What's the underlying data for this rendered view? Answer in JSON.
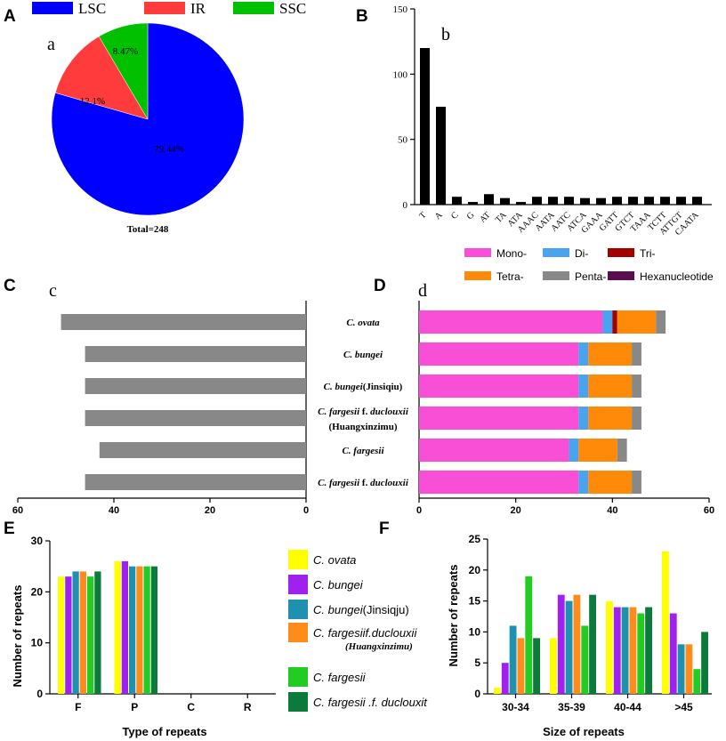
{
  "chart_data": [
    {
      "panel": "A",
      "sublabel": "a",
      "type": "pie",
      "labels": [
        "LSC",
        "IR",
        "SSC"
      ],
      "values": [
        79.44,
        12.1,
        8.47
      ],
      "value_labels": [
        "79.44%",
        "12.1%",
        "8.47%"
      ],
      "colors": [
        "#0000ff",
        "#ff3b3b",
        "#00c000"
      ],
      "total_label": "Total=248"
    },
    {
      "panel": "B",
      "sublabel": "b",
      "type": "bar",
      "categories": [
        "T",
        "A",
        "C",
        "G",
        "AT",
        "TA",
        "ATA",
        "AAAC",
        "AATA",
        "AATC",
        "ATCA",
        "GAAA",
        "GATT",
        "GTCT",
        "TAAA",
        "TCTT",
        "ATTGT",
        "CAATA"
      ],
      "values": [
        120,
        75,
        6,
        2,
        8,
        5,
        2,
        6,
        6,
        6,
        5,
        5,
        6,
        6,
        6,
        6,
        6,
        6
      ],
      "ylim": [
        0,
        150
      ],
      "yticks": [
        0,
        50,
        100,
        150
      ],
      "color": "#000000"
    },
    {
      "panel": "C",
      "sublabel": "c",
      "type": "bar",
      "orientation": "horizontal-reversed",
      "categories": [
        "C. ovata",
        "C. bungei",
        "C. bungei(Jinsiqiu)",
        "C. fargesii f. duclouxii (Huangxinzimu)",
        "C. fargesii",
        "C. fargesii f. duclouxii"
      ],
      "values": [
        51,
        46,
        46,
        46,
        43,
        46
      ],
      "xlim": [
        60,
        0
      ],
      "xticks": [
        60,
        40,
        20,
        0
      ],
      "color": "#888888"
    },
    {
      "panel": "D",
      "sublabel": "d",
      "type": "bar",
      "orientation": "horizontal-stacked",
      "categories": [
        "C. ovata",
        "C. bungei",
        "C. bungei(Jinsiqiu)",
        "C. fargesii f. duclouxii (Huangxinzimu)",
        "C. fargesii",
        "C. fargesii f. duclouxii"
      ],
      "series": [
        {
          "name": "Mono-",
          "color": "#f94fd6",
          "values": [
            38,
            33,
            33,
            33,
            31,
            33
          ]
        },
        {
          "name": "Di-",
          "color": "#4aa3ef",
          "values": [
            2,
            2,
            2,
            2,
            2,
            2
          ]
        },
        {
          "name": "Tri-",
          "color": "#a30000",
          "values": [
            1,
            0,
            0,
            0,
            0,
            0
          ]
        },
        {
          "name": "Tetra-",
          "color": "#ff8a0a",
          "values": [
            8,
            9,
            9,
            9,
            8,
            9
          ]
        },
        {
          "name": "Penta-",
          "color": "#888888",
          "values": [
            2,
            2,
            2,
            2,
            2,
            2
          ]
        },
        {
          "name": "Hexanucleotide",
          "color": "#5a0e4f",
          "values": [
            0,
            0,
            0,
            0,
            0,
            0
          ]
        }
      ],
      "xlim": [
        0,
        60
      ],
      "xticks": [
        0,
        20,
        40,
        60
      ]
    },
    {
      "panel": "E",
      "type": "bar",
      "categories": [
        "F",
        "P",
        "C",
        "R"
      ],
      "series": [
        {
          "name": "C. ovata",
          "color": "#ffff00",
          "values": [
            23,
            26,
            0,
            0
          ]
        },
        {
          "name": "C. bungei",
          "color": "#a020f0",
          "values": [
            23,
            26,
            0,
            0
          ]
        },
        {
          "name": "C. bungei(Jinsiqju)",
          "color": "#1e90b0",
          "values": [
            24,
            25,
            0,
            0
          ]
        },
        {
          "name": "C. fargesiif.duclouxii (Huangxinzimu)",
          "color": "#ff8c1a",
          "values": [
            24,
            25,
            0,
            0
          ]
        },
        {
          "name": "C. fargesii",
          "color": "#22cc22",
          "values": [
            23,
            25,
            0,
            0
          ]
        },
        {
          "name": "C. fargesii .f. duclouxit",
          "color": "#0b7a3b",
          "values": [
            24,
            25,
            0,
            0
          ]
        }
      ],
      "xlabel": "Type of repeats",
      "ylabel": "Number of repeats",
      "ylim": [
        0,
        30
      ],
      "yticks": [
        0,
        10,
        20,
        30
      ]
    },
    {
      "panel": "F",
      "type": "bar",
      "categories": [
        "30-34",
        "35-39",
        "40-44",
        ">45"
      ],
      "series": [
        {
          "name": "C. ovata",
          "color": "#ffff00",
          "values": [
            1,
            9,
            15,
            23
          ]
        },
        {
          "name": "C. bungei",
          "color": "#a020f0",
          "values": [
            5,
            16,
            14,
            13
          ]
        },
        {
          "name": "C. bungei(Jinsiqju)",
          "color": "#1e90b0",
          "values": [
            11,
            15,
            14,
            8
          ]
        },
        {
          "name": "C. fargesiif.duclouxii (Huangxinzimu)",
          "color": "#ff8c1a",
          "values": [
            9,
            16,
            14,
            8
          ]
        },
        {
          "name": "C. fargesii",
          "color": "#22cc22",
          "values": [
            19,
            11,
            13,
            4
          ]
        },
        {
          "name": "C. fargesii .f. duclouxit",
          "color": "#0b7a3b",
          "values": [
            9,
            16,
            14,
            10
          ]
        }
      ],
      "xlabel": "Size of repeats",
      "ylabel": "Number of repeats",
      "ylim": [
        0,
        25
      ],
      "yticks": [
        0,
        5,
        10,
        15,
        20,
        25
      ]
    }
  ]
}
